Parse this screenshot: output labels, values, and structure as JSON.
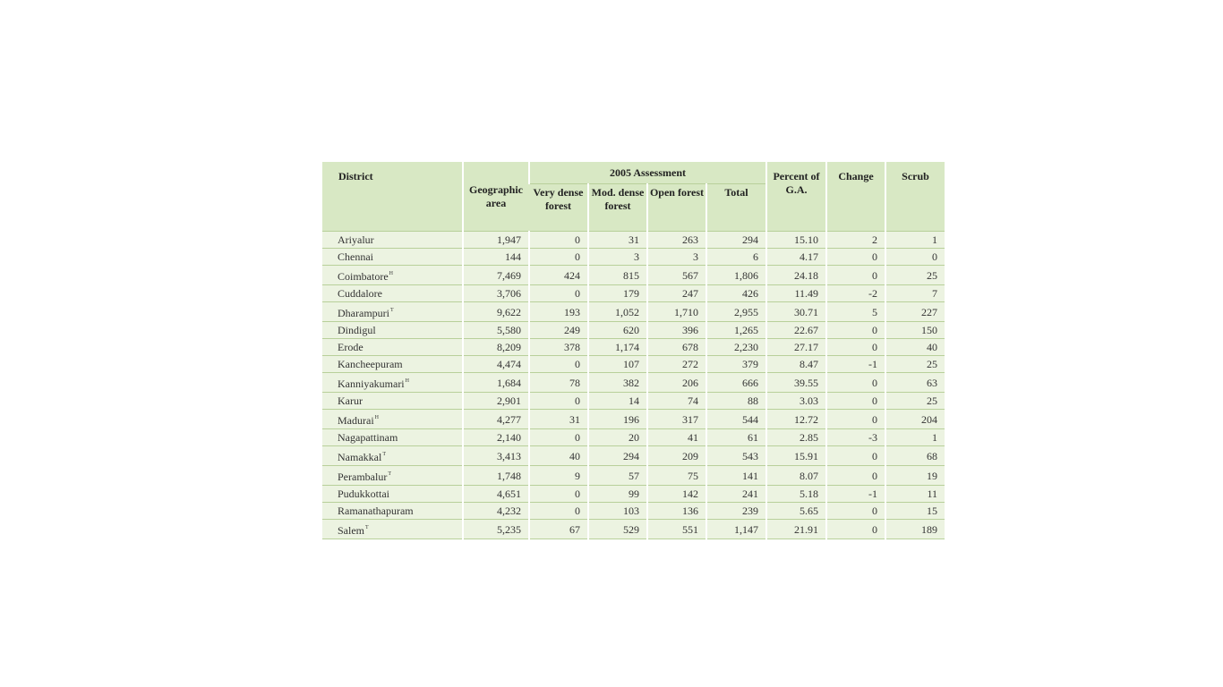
{
  "table": {
    "headers": {
      "district": "District",
      "geographic_area": "Geographic area",
      "assessment_group": "2005 Assessment",
      "very_dense": "Very dense forest",
      "mod_dense": "Mod. dense forest",
      "open_forest": "Open forest",
      "total": "Total",
      "percent": "Percent of G.A.",
      "change": "Change",
      "scrub": "Scrub"
    },
    "rows": [
      {
        "district": "Ariyalur",
        "sup": "",
        "area": "1,947",
        "vd": "0",
        "md": "31",
        "of": "263",
        "total": "294",
        "pct": "15.10",
        "change": "2",
        "scrub": "1"
      },
      {
        "district": "Chennai",
        "sup": "",
        "area": "144",
        "vd": "0",
        "md": "3",
        "of": "3",
        "total": "6",
        "pct": "4.17",
        "change": "0",
        "scrub": "0"
      },
      {
        "district": "Coimbatore",
        "sup": "H",
        "area": "7,469",
        "vd": "424",
        "md": "815",
        "of": "567",
        "total": "1,806",
        "pct": "24.18",
        "change": "0",
        "scrub": "25"
      },
      {
        "district": "Cuddalore",
        "sup": "",
        "area": "3,706",
        "vd": "0",
        "md": "179",
        "of": "247",
        "total": "426",
        "pct": "11.49",
        "change": "-2",
        "scrub": "7"
      },
      {
        "district": "Dharampuri",
        "sup": "T",
        "area": "9,622",
        "vd": "193",
        "md": "1,052",
        "of": "1,710",
        "total": "2,955",
        "pct": "30.71",
        "change": "5",
        "scrub": "227"
      },
      {
        "district": "Dindigul",
        "sup": "",
        "area": "5,580",
        "vd": "249",
        "md": "620",
        "of": "396",
        "total": "1,265",
        "pct": "22.67",
        "change": "0",
        "scrub": "150"
      },
      {
        "district": "Erode",
        "sup": "",
        "area": "8,209",
        "vd": "378",
        "md": "1,174",
        "of": "678",
        "total": "2,230",
        "pct": "27.17",
        "change": "0",
        "scrub": "40"
      },
      {
        "district": "Kancheepuram",
        "sup": "",
        "area": "4,474",
        "vd": "0",
        "md": "107",
        "of": "272",
        "total": "379",
        "pct": "8.47",
        "change": "-1",
        "scrub": "25"
      },
      {
        "district": "Kanniyakumari",
        "sup": "H",
        "area": "1,684",
        "vd": "78",
        "md": "382",
        "of": "206",
        "total": "666",
        "pct": "39.55",
        "change": "0",
        "scrub": "63"
      },
      {
        "district": "Karur",
        "sup": "",
        "area": "2,901",
        "vd": "0",
        "md": "14",
        "of": "74",
        "total": "88",
        "pct": "3.03",
        "change": "0",
        "scrub": "25"
      },
      {
        "district": "Madurai",
        "sup": "H",
        "area": "4,277",
        "vd": "31",
        "md": "196",
        "of": "317",
        "total": "544",
        "pct": "12.72",
        "change": "0",
        "scrub": "204"
      },
      {
        "district": "Nagapattinam",
        "sup": "",
        "area": "2,140",
        "vd": "0",
        "md": "20",
        "of": "41",
        "total": "61",
        "pct": "2.85",
        "change": "-3",
        "scrub": "1"
      },
      {
        "district": "Namakkal",
        "sup": "T",
        "area": "3,413",
        "vd": "40",
        "md": "294",
        "of": "209",
        "total": "543",
        "pct": "15.91",
        "change": "0",
        "scrub": "68"
      },
      {
        "district": "Perambalur",
        "sup": "T",
        "area": "1,748",
        "vd": "9",
        "md": "57",
        "of": "75",
        "total": "141",
        "pct": "8.07",
        "change": "0",
        "scrub": "19"
      },
      {
        "district": "Pudukkottai",
        "sup": "",
        "area": "4,651",
        "vd": "0",
        "md": "99",
        "of": "142",
        "total": "241",
        "pct": "5.18",
        "change": "-1",
        "scrub": "11"
      },
      {
        "district": "Ramanathapuram",
        "sup": "",
        "area": "4,232",
        "vd": "0",
        "md": "103",
        "of": "136",
        "total": "239",
        "pct": "5.65",
        "change": "0",
        "scrub": "15"
      },
      {
        "district": "Salem",
        "sup": "T",
        "area": "5,235",
        "vd": "67",
        "md": "529",
        "of": "551",
        "total": "1,147",
        "pct": "21.91",
        "change": "0",
        "scrub": "189"
      }
    ]
  }
}
